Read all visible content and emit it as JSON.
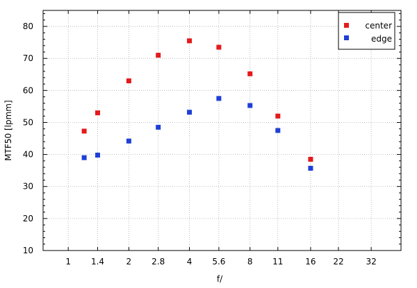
{
  "chart_data": {
    "type": "scatter",
    "xlabel": "f/",
    "ylabel": "MTF50 [lpmm]",
    "x_scale": "log",
    "xlim": [
      0.75,
      45
    ],
    "ylim": [
      10,
      85
    ],
    "x_ticks": [
      {
        "value": 1,
        "label": "1"
      },
      {
        "value": 1.4,
        "label": "1.4"
      },
      {
        "value": 2,
        "label": "2"
      },
      {
        "value": 2.8,
        "label": "2.8"
      },
      {
        "value": 4,
        "label": "4"
      },
      {
        "value": 5.6,
        "label": "5.6"
      },
      {
        "value": 8,
        "label": "8"
      },
      {
        "value": 11,
        "label": "11"
      },
      {
        "value": 16,
        "label": "16"
      },
      {
        "value": 22,
        "label": "22"
      },
      {
        "value": 32,
        "label": "32"
      }
    ],
    "y_ticks": [
      10,
      20,
      30,
      40,
      50,
      60,
      70,
      80
    ],
    "grid": true,
    "legend_position": "top-right",
    "series": [
      {
        "name": "center",
        "color": "#e41a1c",
        "points": [
          {
            "x": 1.2,
            "y": 47.3
          },
          {
            "x": 1.4,
            "y": 53.0
          },
          {
            "x": 2.0,
            "y": 63.0
          },
          {
            "x": 2.8,
            "y": 71.0
          },
          {
            "x": 4.0,
            "y": 75.5
          },
          {
            "x": 5.6,
            "y": 73.5
          },
          {
            "x": 8.0,
            "y": 65.2
          },
          {
            "x": 11.0,
            "y": 52.0
          },
          {
            "x": 16.0,
            "y": 38.5
          }
        ]
      },
      {
        "name": "edge",
        "color": "#1f3fd6",
        "points": [
          {
            "x": 1.2,
            "y": 39.0
          },
          {
            "x": 1.4,
            "y": 39.8
          },
          {
            "x": 2.0,
            "y": 44.2
          },
          {
            "x": 2.8,
            "y": 48.5
          },
          {
            "x": 4.0,
            "y": 53.2
          },
          {
            "x": 5.6,
            "y": 57.5
          },
          {
            "x": 8.0,
            "y": 55.3
          },
          {
            "x": 11.0,
            "y": 47.5
          },
          {
            "x": 16.0,
            "y": 35.7
          }
        ]
      }
    ]
  }
}
